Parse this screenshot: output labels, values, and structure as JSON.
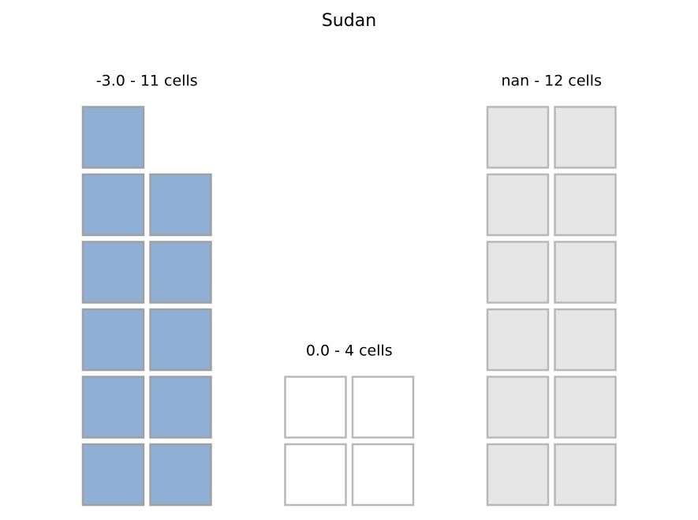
{
  "chart_data": {
    "type": "waffle",
    "title": "Sudan",
    "groups": [
      {
        "value": "-3.0",
        "cells": 11,
        "label": "-3.0 - 11 cells",
        "fill": "#8fafd4",
        "stroke": "#a0a0a0"
      },
      {
        "value": "0.0",
        "cells": 4,
        "label": "0.0 - 4 cells",
        "fill": "#ffffff",
        "stroke": "#b8b8b8"
      },
      {
        "value": "nan",
        "cells": 12,
        "label": "nan - 12 cells",
        "fill": "#e6e6e6",
        "stroke": "#b8b8b8"
      }
    ]
  }
}
